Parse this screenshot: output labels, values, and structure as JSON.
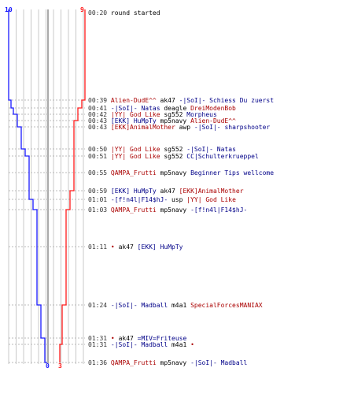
{
  "scoreboard": {
    "blue_start": "10",
    "red_start": "9",
    "blue_end": "0",
    "red_end": "3",
    "blue_color": "#1a1aff",
    "red_color": "#ff1a1a"
  },
  "events": [
    {
      "time": "00:20",
      "parts": [
        {
          "t": "round started",
          "c": "ev-word"
        }
      ]
    },
    {
      "time": "00:39",
      "parts": [
        {
          "t": "Alien-DudE^^",
          "c": "team-a"
        },
        {
          "t": " ak47 ",
          "c": "weapon"
        },
        {
          "t": "-|SoI|- Schiess Du zuerst",
          "c": "team-b"
        }
      ]
    },
    {
      "time": "00:41",
      "parts": [
        {
          "t": "-|SoI|- Natas",
          "c": "team-b"
        },
        {
          "t": " deagle ",
          "c": "weapon"
        },
        {
          "t": "DreiModenBob",
          "c": "team-a"
        }
      ]
    },
    {
      "time": "00:42",
      "parts": [
        {
          "t": "|YY| God Like",
          "c": "team-a"
        },
        {
          "t": " sg552 ",
          "c": "weapon"
        },
        {
          "t": "Morpheus",
          "c": "team-b"
        }
      ]
    },
    {
      "time": "00:43",
      "parts": [
        {
          "t": "[EKK] HuMpTy",
          "c": "team-b"
        },
        {
          "t": " mp5navy ",
          "c": "weapon"
        },
        {
          "t": "Alien-DudE^^",
          "c": "team-a"
        }
      ]
    },
    {
      "time": "00:43",
      "parts": [
        {
          "t": "[EKK]AnimalMother",
          "c": "team-a"
        },
        {
          "t": " awp ",
          "c": "weapon"
        },
        {
          "t": "-|SoI|- sharpshooter",
          "c": "team-b"
        }
      ]
    },
    {
      "time": "00:50",
      "parts": [
        {
          "t": "|YY| God Like",
          "c": "team-a"
        },
        {
          "t": " sg552 ",
          "c": "weapon"
        },
        {
          "t": "-|SoI|- Natas",
          "c": "team-b"
        }
      ]
    },
    {
      "time": "00:51",
      "parts": [
        {
          "t": "|YY| God Like",
          "c": "team-a"
        },
        {
          "t": " sg552 ",
          "c": "weapon"
        },
        {
          "t": "CC|Schulterkrueppel",
          "c": "team-b"
        }
      ]
    },
    {
      "time": "00:55",
      "parts": [
        {
          "t": "QAMPA_Frutti",
          "c": "team-a"
        },
        {
          "t": " mp5navy ",
          "c": "weapon"
        },
        {
          "t": "Beginner Tips wellcome",
          "c": "team-b"
        }
      ]
    },
    {
      "time": "00:59",
      "parts": [
        {
          "t": "[EKK] HuMpTy",
          "c": "team-b"
        },
        {
          "t": " ak47 ",
          "c": "weapon"
        },
        {
          "t": "[EKK]AnimalMother",
          "c": "team-a"
        }
      ]
    },
    {
      "time": "01:01",
      "parts": [
        {
          "t": "-[f!n4l|F14$hJ-",
          "c": "team-b"
        },
        {
          "t": " usp ",
          "c": "weapon"
        },
        {
          "t": "|YY| God Like",
          "c": "team-a"
        }
      ]
    },
    {
      "time": "01:03",
      "parts": [
        {
          "t": "QAMPA_Frutti",
          "c": "team-a"
        },
        {
          "t": " mp5navy ",
          "c": "weapon"
        },
        {
          "t": "-[f!n4l|F14$hJ-",
          "c": "team-b"
        }
      ]
    },
    {
      "time": "01:11",
      "parts": [
        {
          "t": "•",
          "c": "team-a"
        },
        {
          "t": " ak47 ",
          "c": "weapon"
        },
        {
          "t": "[EKK] HuMpTy",
          "c": "team-b"
        }
      ]
    },
    {
      "time": "01:24",
      "parts": [
        {
          "t": "-|SoI|- Madball",
          "c": "team-b"
        },
        {
          "t": " m4a1 ",
          "c": "weapon"
        },
        {
          "t": "SpecialForcesMANIAX",
          "c": "team-a"
        }
      ]
    },
    {
      "time": "01:31",
      "parts": [
        {
          "t": "•",
          "c": "team-a"
        },
        {
          "t": " ak47 ",
          "c": "weapon"
        },
        {
          "t": "=MIV=Friteuse",
          "c": "team-b"
        }
      ]
    },
    {
      "time": "01:31",
      "parts": [
        {
          "t": "-|SoI|- Madball",
          "c": "team-b"
        },
        {
          "t": " m4a1 ",
          "c": "weapon"
        },
        {
          "t": "•",
          "c": "team-a"
        }
      ]
    },
    {
      "time": "01:36",
      "parts": [
        {
          "t": "QAMPA_Frutti",
          "c": "team-a"
        },
        {
          "t": " mp5navy ",
          "c": "weapon"
        },
        {
          "t": "-|SoI|- Madball",
          "c": "team-b"
        }
      ]
    }
  ]
}
